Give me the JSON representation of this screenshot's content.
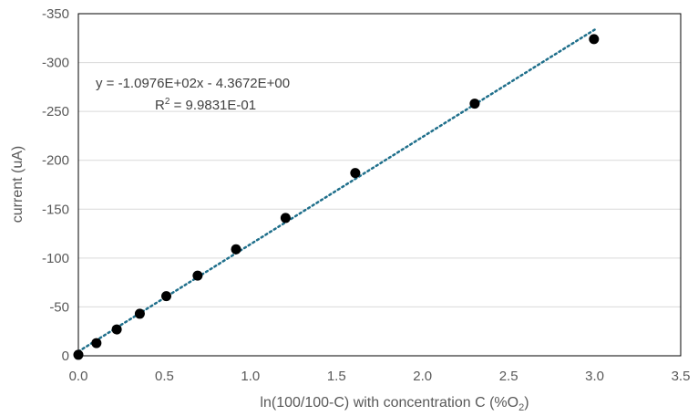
{
  "chart_data": {
    "type": "scatter",
    "xlabel": "ln(100/100-C) with concentration C (%O",
    "xlabel_sub": "2",
    "xlabel_close": ")",
    "ylabel": "current (uA)",
    "xlim": [
      0,
      3.5
    ],
    "ylim": [
      0,
      -350
    ],
    "x_ticks": [
      "0.0",
      "0.5",
      "1.0",
      "1.5",
      "2.0",
      "2.5",
      "3.0",
      "3.5"
    ],
    "y_ticks": [
      "0",
      "-50",
      "-100",
      "-150",
      "-200",
      "-250",
      "-300",
      "-350"
    ],
    "grid": "horizontal",
    "series": [
      {
        "x": [
          0.0,
          0.105,
          0.223,
          0.357,
          0.511,
          0.693,
          0.916,
          1.204,
          1.609,
          2.303,
          2.996
        ],
        "y": [
          -1,
          -13,
          -27,
          -43,
          -61,
          -82,
          -109,
          -141,
          -187,
          -258,
          -324
        ]
      }
    ],
    "trendline": {
      "type": "linear",
      "slope": -109.76,
      "intercept": -4.3672,
      "x_range": [
        0,
        3.0
      ],
      "color": "#1f6f8b",
      "style": "dotted",
      "equation_label": "y = -1.0976E+02x - 4.3672E+00",
      "r2_prefix": "R",
      "r2_sup": "2",
      "r2_value": " = 9.9831E-01"
    },
    "colors": {
      "marker": "#000000",
      "grid": "#d9d9d9",
      "axis": "#000000",
      "text": "#595959"
    }
  }
}
